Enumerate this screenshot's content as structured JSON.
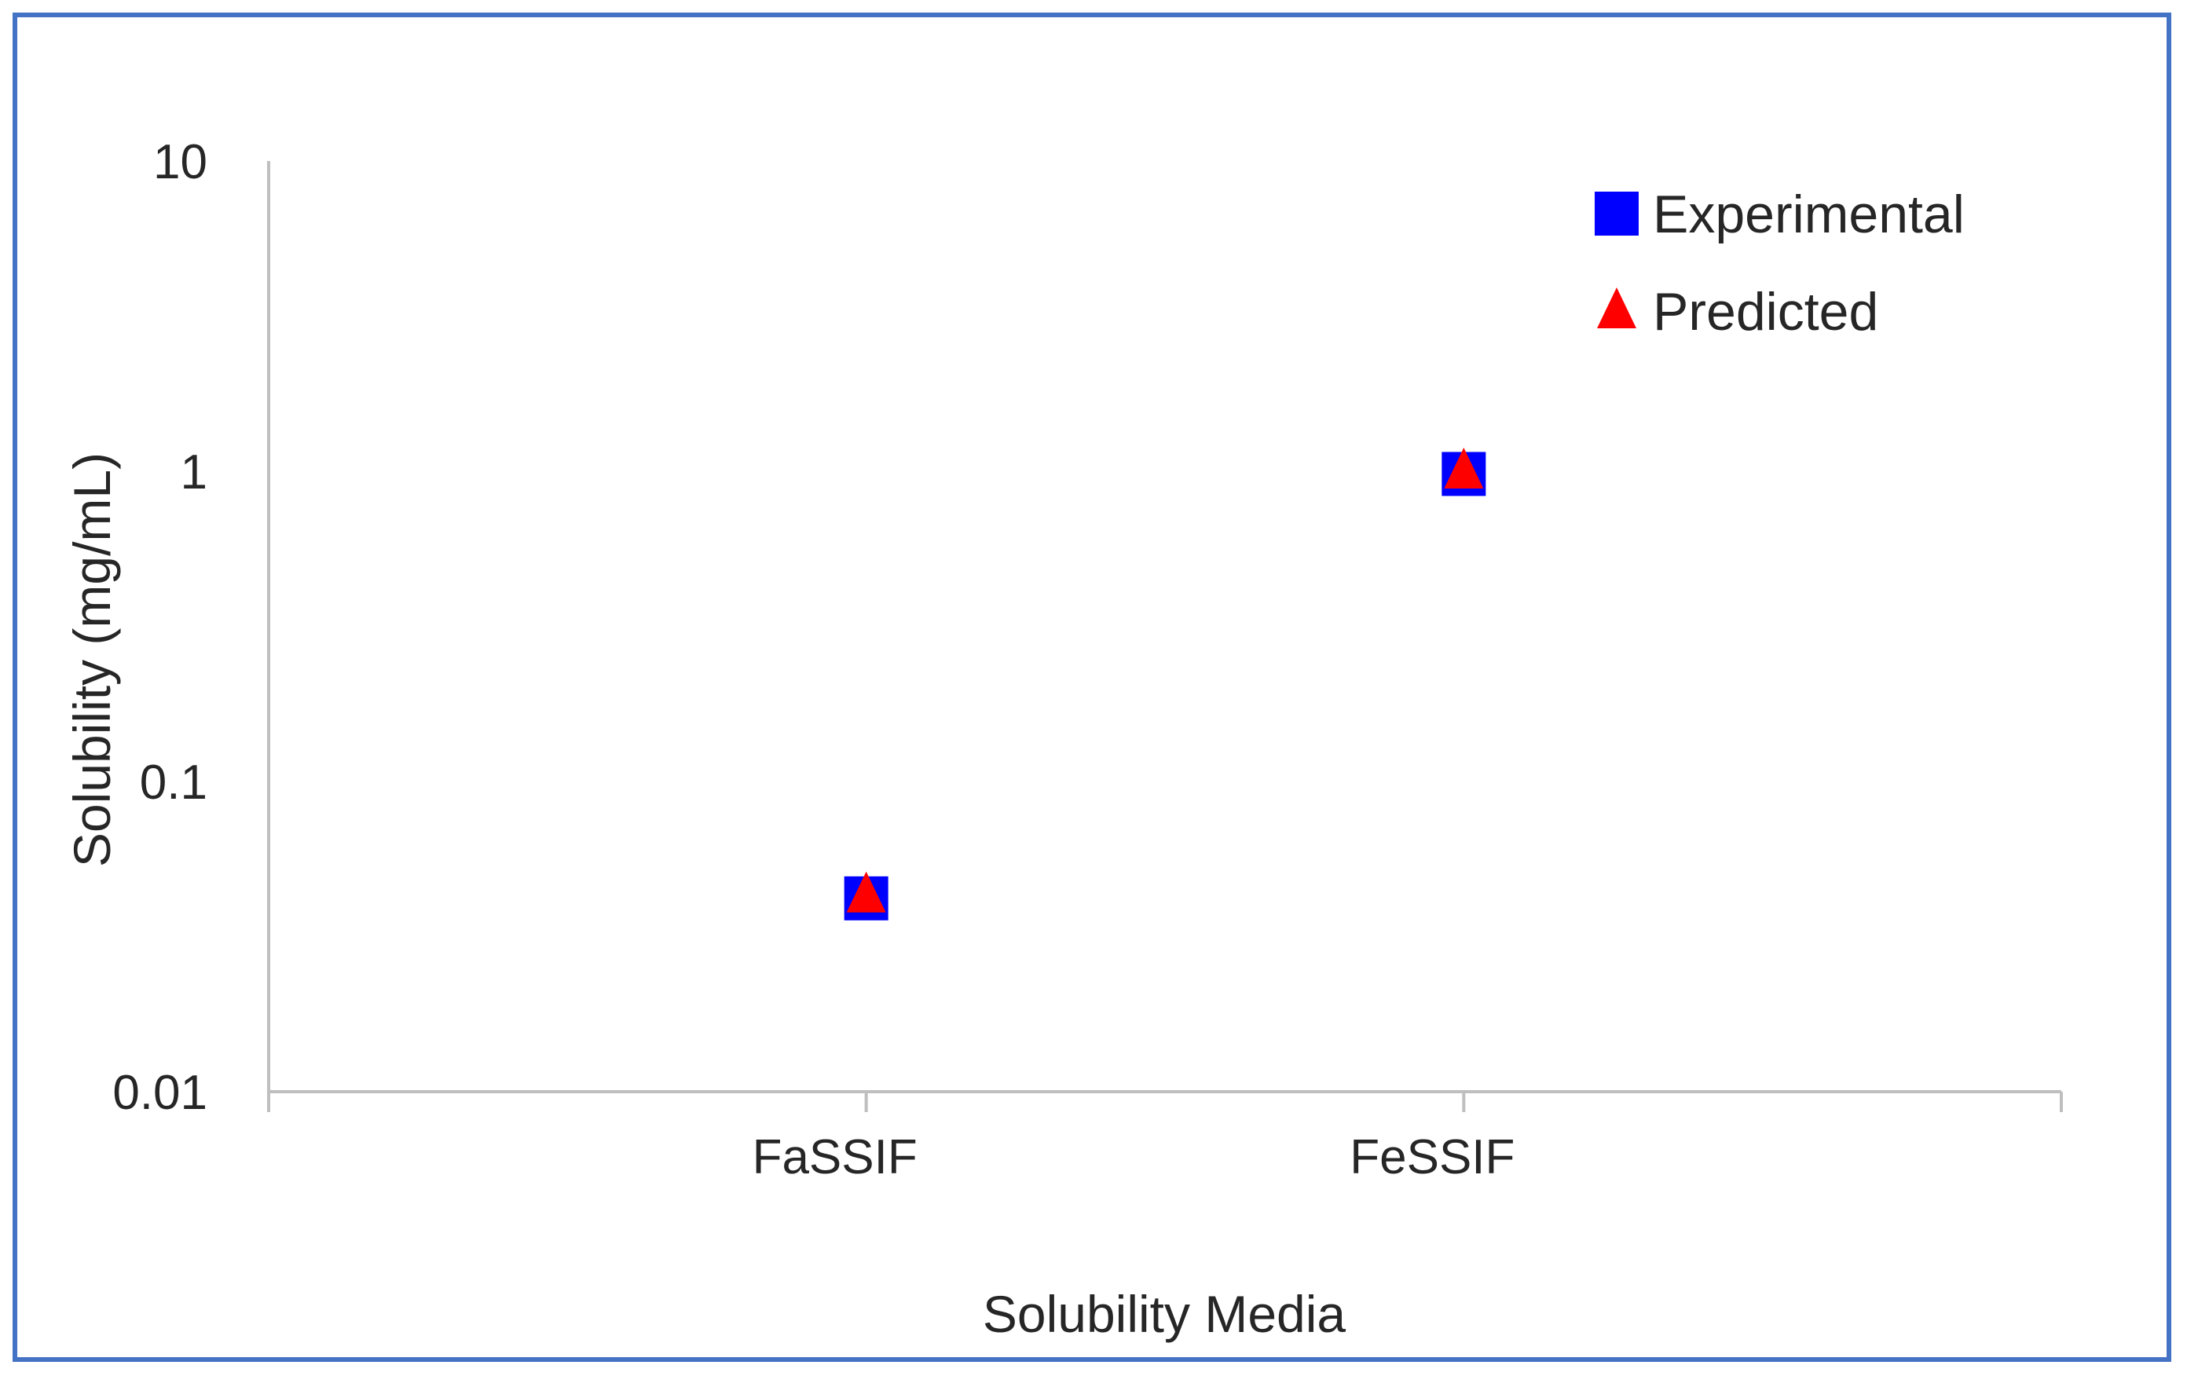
{
  "chart_data": {
    "type": "scatter",
    "categories": [
      "FaSSIF",
      "FeSSIF"
    ],
    "series": [
      {
        "name": "Experimental",
        "values": [
          0.042,
          0.98
        ],
        "color": "#0000FF",
        "marker": "square"
      },
      {
        "name": "Predicted",
        "values": [
          0.043,
          1.0
        ],
        "color": "#FF0000",
        "marker": "triangle"
      }
    ],
    "xlabel": "Solubility Media",
    "ylabel": "Solubility (mg/mL)",
    "yscale": "log",
    "ylim": [
      0.01,
      10
    ],
    "yticks": [
      "0.01",
      "0.1",
      "1",
      "10"
    ],
    "grid": false,
    "legend_position": "top-right",
    "colors": {
      "axis": "#BFBFBF",
      "frame": "#4472C4",
      "text": "#262626"
    }
  }
}
